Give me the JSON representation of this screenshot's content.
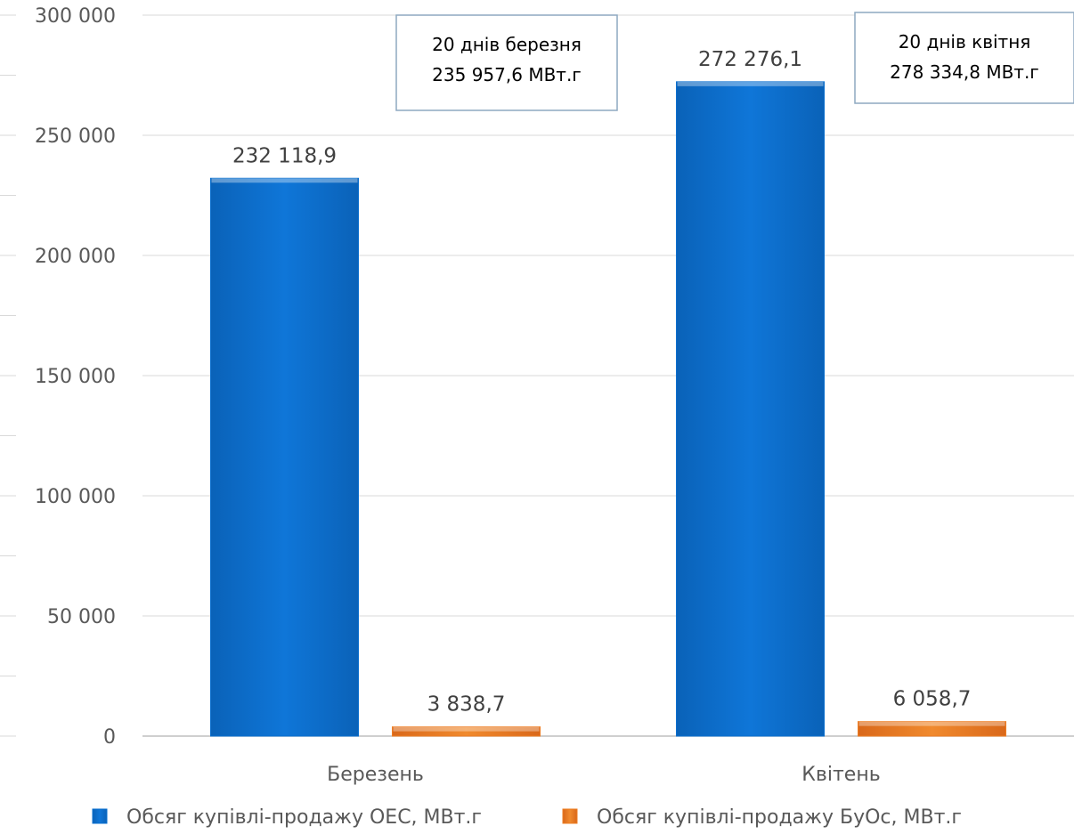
{
  "chart_data": {
    "type": "bar",
    "categories": [
      "Березень",
      "Квітень"
    ],
    "series": [
      {
        "name": "Обсяг купівлі-продажу ОЕС, МВт.г",
        "values": [
          232118.9,
          272276.1
        ],
        "labels": [
          "232 118,9",
          "272 276,1"
        ],
        "color": "#0A6FCF"
      },
      {
        "name": "Обсяг купівлі-продажу БуОс, МВт.г",
        "values": [
          3838.7,
          6058.7
        ],
        "labels": [
          "3 838,7",
          "6 058,7"
        ],
        "color": "#EE7D22"
      }
    ],
    "ylim": [
      0,
      300000
    ],
    "yticks": [
      0,
      50000,
      100000,
      150000,
      200000,
      250000,
      300000
    ],
    "ytick_labels": [
      "0",
      "50 000",
      "100 000",
      "150 000",
      "200 000",
      "250 000",
      "300 000"
    ],
    "grid": true,
    "legend_position": "bottom",
    "annotations": [
      {
        "category": "Березень",
        "lines": [
          "20 днів березня",
          "235 957,6 МВт.г"
        ]
      },
      {
        "category": "Квітень",
        "lines": [
          "20 днів квітня",
          "278 334,8 МВт.г"
        ]
      }
    ]
  }
}
